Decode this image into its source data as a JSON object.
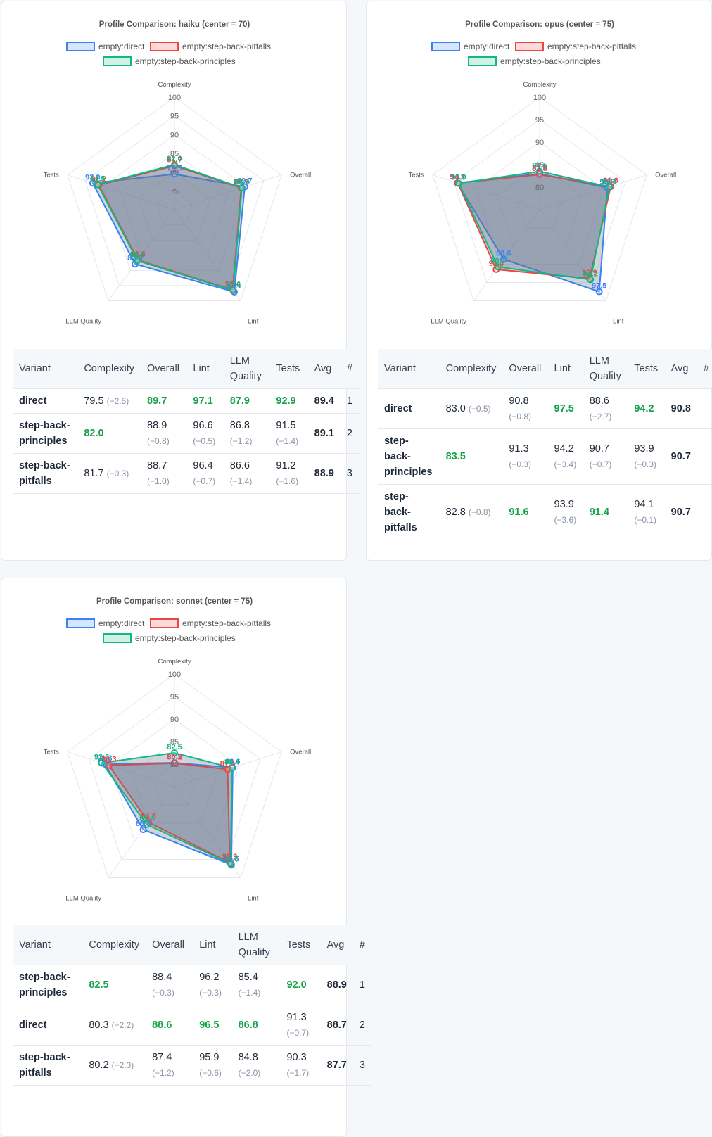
{
  "legend": [
    "empty:direct",
    "empty:step-back-pitfalls",
    "empty:step-back-principles"
  ],
  "colors": {
    "direct": "#3b82f6",
    "pitfalls": "#ef4444",
    "principles": "#10b981",
    "best": "#16a34a"
  },
  "table_headers": [
    "Variant",
    "Complexity",
    "Overall",
    "Lint",
    "LLM Quality",
    "Tests",
    "Avg",
    "#"
  ],
  "chart_data": [
    {
      "type": "radar",
      "title": "Profile Comparison: haiku  (center = 70)",
      "axes": [
        "Complexity",
        "Overall",
        "Lint",
        "LLM Quality",
        "Tests"
      ],
      "rmin": 70,
      "rmax": 100,
      "ticks": [
        "75",
        "80",
        "85",
        "90",
        "95",
        "100"
      ],
      "series": [
        {
          "name": "empty:direct",
          "values": [
            79.5,
            89.7,
            97.1,
            87.9,
            92.9
          ]
        },
        {
          "name": "empty:step-back-pitfalls",
          "values": [
            81.7,
            88.7,
            96.4,
            86.6,
            91.2
          ]
        },
        {
          "name": "empty:step-back-principles",
          "values": [
            82.0,
            88.9,
            96.6,
            86.8,
            91.5
          ]
        }
      ]
    },
    {
      "type": "radar",
      "title": "Profile Comparison: opus  (center = 75)",
      "axes": [
        "Complexity",
        "Overall",
        "Lint",
        "LLM Quality",
        "Tests"
      ],
      "rmin": 75,
      "rmax": 100,
      "ticks": [
        "80",
        "85",
        "90",
        "95",
        "100"
      ],
      "series": [
        {
          "name": "empty:direct",
          "values": [
            83.0,
            90.8,
            97.5,
            88.6,
            94.2
          ]
        },
        {
          "name": "empty:step-back-pitfalls",
          "values": [
            82.8,
            91.6,
            93.9,
            91.4,
            94.1
          ]
        },
        {
          "name": "empty:step-back-principles",
          "values": [
            83.5,
            91.3,
            94.2,
            90.7,
            93.9
          ]
        }
      ]
    },
    {
      "type": "radar",
      "title": "Profile Comparison: sonnet  (center = 75)",
      "axes": [
        "Complexity",
        "Overall",
        "Lint",
        "LLM Quality",
        "Tests"
      ],
      "rmin": 75,
      "rmax": 100,
      "ticks": [
        "80",
        "85",
        "90",
        "95",
        "100"
      ],
      "series": [
        {
          "name": "empty:direct",
          "values": [
            80.3,
            88.6,
            96.5,
            86.8,
            91.3
          ]
        },
        {
          "name": "empty:step-back-pitfalls",
          "values": [
            80.2,
            87.4,
            95.9,
            84.8,
            90.3
          ]
        },
        {
          "name": "empty:step-back-principles",
          "values": [
            82.5,
            88.4,
            96.2,
            85.4,
            92.0
          ]
        }
      ]
    }
  ],
  "tables": [
    {
      "rows": [
        {
          "variant": "direct",
          "cells": [
            [
              "79.5",
              "(−2.5)",
              false
            ],
            [
              "89.7",
              "",
              true
            ],
            [
              "97.1",
              "",
              true
            ],
            [
              "87.9",
              "",
              true
            ],
            [
              "92.9",
              "",
              true
            ]
          ],
          "avg": "89.4",
          "rank": "1"
        },
        {
          "variant": "step-back-principles",
          "cells": [
            [
              "82.0",
              "",
              true
            ],
            [
              "88.9",
              "(−0.8)",
              false
            ],
            [
              "96.6",
              "(−0.5)",
              false
            ],
            [
              "86.8",
              "(−1.2)",
              false
            ],
            [
              "91.5",
              "(−1.4)",
              false
            ]
          ],
          "avg": "89.1",
          "rank": "2"
        },
        {
          "variant": "step-back-pitfalls",
          "cells": [
            [
              "81.7",
              "(−0.3)",
              false
            ],
            [
              "88.7",
              "(−1.0)",
              false
            ],
            [
              "96.4",
              "(−0.7)",
              false
            ],
            [
              "86.6",
              "(−1.4)",
              false
            ],
            [
              "91.2",
              "(−1.6)",
              false
            ]
          ],
          "avg": "88.9",
          "rank": "3"
        }
      ]
    },
    {
      "rows": [
        {
          "variant": "direct",
          "cells": [
            [
              "83.0",
              "(−0.5)",
              false
            ],
            [
              "90.8",
              "(−0.8)",
              false
            ],
            [
              "97.5",
              "",
              true
            ],
            [
              "88.6",
              "(−2.7)",
              false
            ],
            [
              "94.2",
              "",
              true
            ]
          ],
          "avg": "90.8",
          "rank": ""
        },
        {
          "variant": "step-back-principles",
          "cells": [
            [
              "83.5",
              "",
              true
            ],
            [
              "91.3",
              "(−0.3)",
              false
            ],
            [
              "94.2",
              "(−3.4)",
              false
            ],
            [
              "90.7",
              "(−0.7)",
              false
            ],
            [
              "93.9",
              "(−0.3)",
              false
            ]
          ],
          "avg": "90.7",
          "rank": ""
        },
        {
          "variant": "step-back-pitfalls",
          "cells": [
            [
              "82.8",
              "(−0.8)",
              false
            ],
            [
              "91.6",
              "",
              true
            ],
            [
              "93.9",
              "(−3.6)",
              false
            ],
            [
              "91.4",
              "",
              true
            ],
            [
              "94.1",
              "(−0.1)",
              false
            ]
          ],
          "avg": "90.7",
          "rank": ""
        }
      ]
    },
    {
      "rows": [
        {
          "variant": "step-back-principles",
          "cells": [
            [
              "82.5",
              "",
              true
            ],
            [
              "88.4",
              "(−0.3)",
              false
            ],
            [
              "96.2",
              "(−0.3)",
              false
            ],
            [
              "85.4",
              "(−1.4)",
              false
            ],
            [
              "92.0",
              "",
              true
            ]
          ],
          "avg": "88.9",
          "rank": "1"
        },
        {
          "variant": "direct",
          "cells": [
            [
              "80.3",
              "(−2.2)",
              false
            ],
            [
              "88.6",
              "",
              true
            ],
            [
              "96.5",
              "",
              true
            ],
            [
              "86.8",
              "",
              true
            ],
            [
              "91.3",
              "(−0.7)",
              false
            ]
          ],
          "avg": "88.7",
          "rank": "2"
        },
        {
          "variant": "step-back-pitfalls",
          "cells": [
            [
              "80.2",
              "(−2.3)",
              false
            ],
            [
              "87.4",
              "(−1.2)",
              false
            ],
            [
              "95.9",
              "(−0.6)",
              false
            ],
            [
              "84.8",
              "(−2.0)",
              false
            ],
            [
              "90.3",
              "(−1.7)",
              false
            ]
          ],
          "avg": "87.7",
          "rank": "3"
        }
      ]
    }
  ]
}
